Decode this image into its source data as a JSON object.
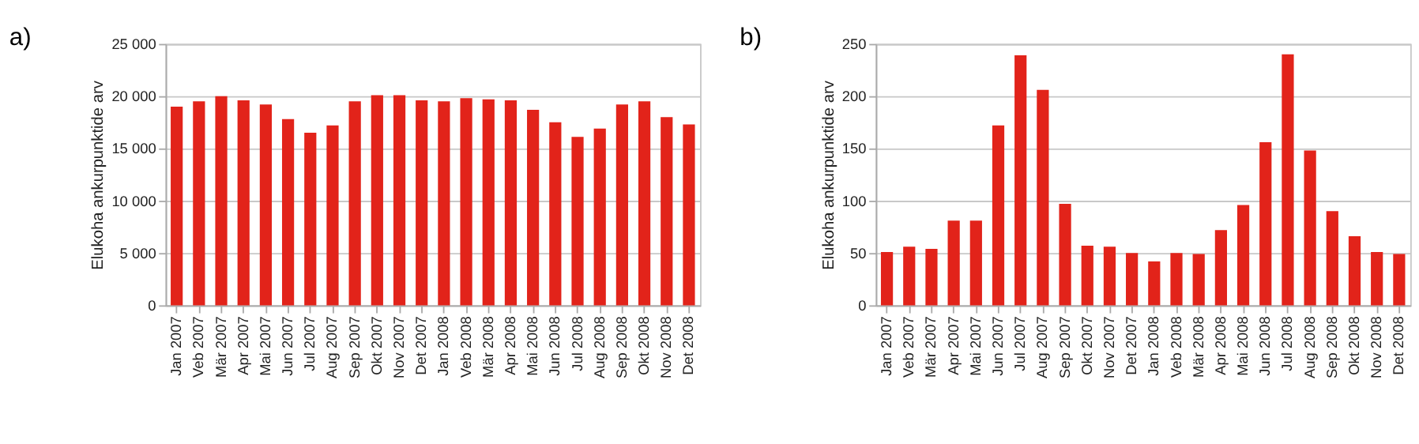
{
  "chart_data": [
    {
      "type": "bar",
      "title": "a)",
      "ylabel": "Elukoha ankurpunktide arv",
      "categories": [
        "Jan 2007",
        "Veb 2007",
        "Mär 2007",
        "Apr 2007",
        "Mai 2007",
        "Jun 2007",
        "Jul 2007",
        "Aug 2007",
        "Sep 2007",
        "Okt 2007",
        "Nov 2007",
        "Det 2007",
        "Jan 2008",
        "Veb 2008",
        "Mär 2008",
        "Apr 2008",
        "Mai 2008",
        "Jun 2008",
        "Jul 2008",
        "Aug 2008",
        "Sep 2008",
        "Okt 2008",
        "Nov 2008",
        "Det 2008"
      ],
      "values": [
        19000,
        19500,
        20000,
        19600,
        19200,
        17800,
        16500,
        17200,
        19500,
        20100,
        20100,
        19600,
        19500,
        19800,
        19700,
        19600,
        18700,
        17500,
        16100,
        16900,
        19200,
        19500,
        18000,
        17300
      ],
      "color": "#e2231a",
      "ylim": [
        0,
        25000
      ],
      "yticks": [
        0,
        {
          "value": 5000,
          "label": "5 000"
        },
        {
          "value": 10000,
          "label": "10 000"
        },
        {
          "value": 15000,
          "label": "15 000"
        },
        {
          "value": 20000,
          "label": "20 000"
        },
        {
          "value": 25000,
          "label": "25 000"
        }
      ],
      "grid": "y"
    },
    {
      "type": "bar",
      "title": "b)",
      "ylabel": "Elukoha ankurpunktide arv",
      "categories": [
        "Jan 2007",
        "Veb 2007",
        "Mär 2007",
        "Apr 2007",
        "Mai 2007",
        "Jun 2007",
        "Jul 2007",
        "Aug 2007",
        "Sep 2007",
        "Okt 2007",
        "Nov 2007",
        "Det 2007",
        "Jan 2008",
        "Veb 2008",
        "Mär 2008",
        "Apr 2008",
        "Mai 2008",
        "Jun 2008",
        "Jul 2008",
        "Aug 2008",
        "Sep 2008",
        "Okt 2008",
        "Nov 2008",
        "Det 2008"
      ],
      "values": [
        51,
        56,
        54,
        81,
        81,
        172,
        239,
        206,
        97,
        57,
        56,
        50,
        42,
        50,
        49,
        72,
        96,
        156,
        240,
        148,
        90,
        66,
        51,
        49
      ],
      "color": "#e2231a",
      "ylim": [
        0,
        250
      ],
      "yticks": [
        0,
        50,
        100,
        150,
        200,
        250
      ],
      "grid": "y"
    }
  ]
}
